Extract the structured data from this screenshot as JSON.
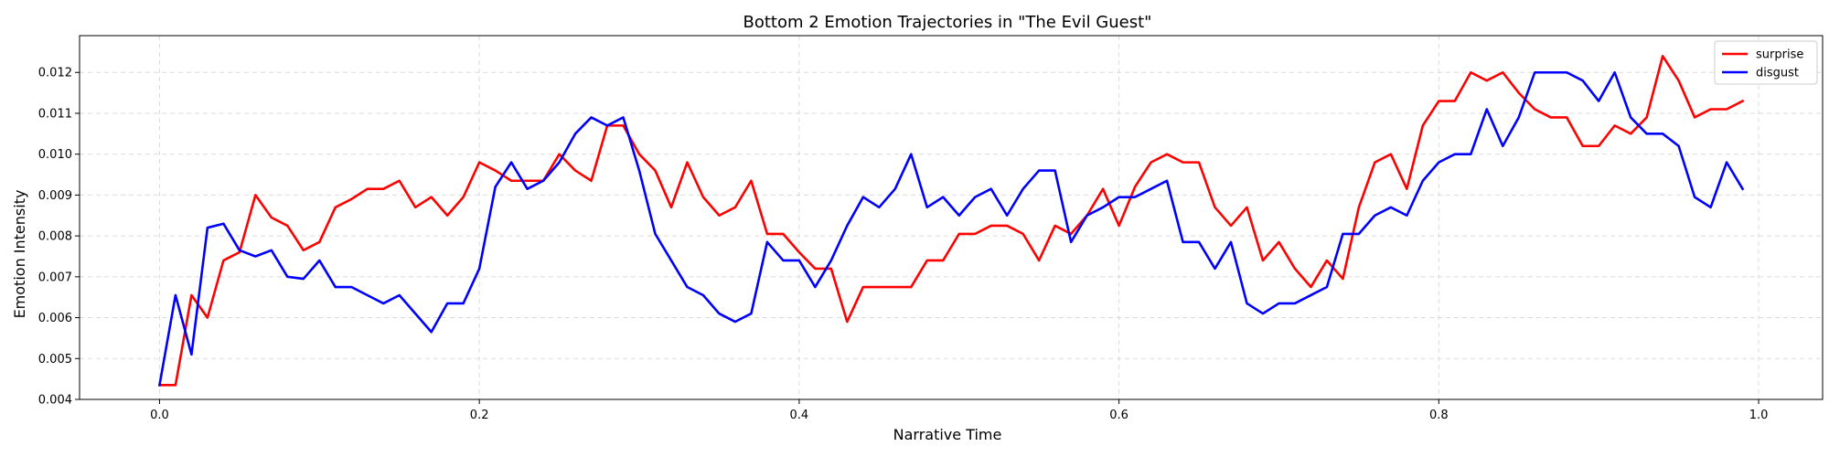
{
  "chart_data": {
    "type": "line",
    "title": "Bottom 2 Emotion Trajectories in \"The Evil Guest\"",
    "xlabel": "Narrative Time",
    "ylabel": "Emotion Intensity",
    "xlim": [
      -0.05,
      1.04
    ],
    "ylim": [
      0.004,
      0.0129
    ],
    "xticks": [
      0.0,
      0.2,
      0.4,
      0.6,
      0.8,
      1.0
    ],
    "xtick_labels": [
      "0.0",
      "0.2",
      "0.4",
      "0.6",
      "0.8",
      "1.0"
    ],
    "yticks": [
      0.004,
      0.005,
      0.006,
      0.007,
      0.008,
      0.009,
      0.01,
      0.011,
      0.012
    ],
    "ytick_labels": [
      "0.004",
      "0.005",
      "0.006",
      "0.007",
      "0.008",
      "0.009",
      "0.010",
      "0.011",
      "0.012"
    ],
    "grid": true,
    "legend_position": "top-right",
    "x": [
      0.0,
      0.01,
      0.02,
      0.03,
      0.04,
      0.05,
      0.06,
      0.07,
      0.08,
      0.09,
      0.1,
      0.11,
      0.12,
      0.13,
      0.14,
      0.15,
      0.16,
      0.17,
      0.18,
      0.19,
      0.2,
      0.21,
      0.22,
      0.23,
      0.24,
      0.25,
      0.26,
      0.27,
      0.28,
      0.29,
      0.3,
      0.31,
      0.32,
      0.33,
      0.34,
      0.35,
      0.36,
      0.37,
      0.38,
      0.39,
      0.4,
      0.41,
      0.42,
      0.43,
      0.44,
      0.45,
      0.46,
      0.47,
      0.48,
      0.49,
      0.5,
      0.51,
      0.52,
      0.53,
      0.54,
      0.55,
      0.56,
      0.57,
      0.58,
      0.59,
      0.6,
      0.61,
      0.62,
      0.63,
      0.64,
      0.65,
      0.66,
      0.67,
      0.68,
      0.69,
      0.7,
      0.71,
      0.72,
      0.73,
      0.74,
      0.75,
      0.76,
      0.77,
      0.78,
      0.79,
      0.8,
      0.81,
      0.82,
      0.83,
      0.84,
      0.85,
      0.86,
      0.87,
      0.88,
      0.89,
      0.9,
      0.91,
      0.92,
      0.93,
      0.94,
      0.95,
      0.96,
      0.97,
      0.98,
      0.99
    ],
    "series": [
      {
        "name": "surprise",
        "color": "#ff0000",
        "values": [
          0.00435,
          0.00435,
          0.00655,
          0.006,
          0.0074,
          0.0076,
          0.009,
          0.00845,
          0.00825,
          0.00765,
          0.00785,
          0.0087,
          0.0089,
          0.00915,
          0.00915,
          0.00935,
          0.0087,
          0.00895,
          0.0085,
          0.00895,
          0.0098,
          0.0096,
          0.00935,
          0.00935,
          0.00935,
          0.01,
          0.0096,
          0.00935,
          0.0107,
          0.0107,
          0.01,
          0.0096,
          0.0087,
          0.0098,
          0.00895,
          0.0085,
          0.0087,
          0.00935,
          0.00805,
          0.00805,
          0.0076,
          0.0072,
          0.0072,
          0.0059,
          0.00675,
          0.00675,
          0.00675,
          0.00675,
          0.0074,
          0.0074,
          0.00805,
          0.00805,
          0.00825,
          0.00825,
          0.00805,
          0.0074,
          0.00825,
          0.00805,
          0.0085,
          0.00915,
          0.00825,
          0.0092,
          0.0098,
          0.01,
          0.0098,
          0.0098,
          0.0087,
          0.00825,
          0.0087,
          0.0074,
          0.00785,
          0.0072,
          0.00675,
          0.0074,
          0.00695,
          0.0087,
          0.0098,
          0.01,
          0.00915,
          0.0107,
          0.0113,
          0.0113,
          0.012,
          0.0118,
          0.012,
          0.0115,
          0.0111,
          0.0109,
          0.0109,
          0.0102,
          0.0102,
          0.0107,
          0.0105,
          0.0109,
          0.0124,
          0.0118,
          0.0109,
          0.0111,
          0.0111,
          0.0113
        ]
      },
      {
        "name": "disgust",
        "color": "#0000ff",
        "values": [
          0.00435,
          0.00655,
          0.0051,
          0.0082,
          0.0083,
          0.00765,
          0.0075,
          0.00765,
          0.007,
          0.00695,
          0.0074,
          0.00675,
          0.00675,
          0.00655,
          0.00635,
          0.00655,
          0.0061,
          0.00565,
          0.00635,
          0.00635,
          0.0072,
          0.0092,
          0.0098,
          0.00915,
          0.00935,
          0.0098,
          0.0105,
          0.0109,
          0.0107,
          0.0109,
          0.0096,
          0.00805,
          0.0074,
          0.00675,
          0.00655,
          0.0061,
          0.0059,
          0.0061,
          0.00785,
          0.0074,
          0.0074,
          0.00675,
          0.0074,
          0.00825,
          0.00895,
          0.0087,
          0.00915,
          0.01,
          0.0087,
          0.00895,
          0.0085,
          0.00895,
          0.00915,
          0.0085,
          0.00915,
          0.0096,
          0.0096,
          0.00785,
          0.0085,
          0.0087,
          0.00895,
          0.00895,
          0.00915,
          0.00935,
          0.00785,
          0.00785,
          0.0072,
          0.00785,
          0.00635,
          0.0061,
          0.00635,
          0.00635,
          0.00655,
          0.00675,
          0.00805,
          0.00805,
          0.0085,
          0.0087,
          0.0085,
          0.00935,
          0.0098,
          0.01,
          0.01,
          0.0111,
          0.0102,
          0.0109,
          0.012,
          0.012,
          0.012,
          0.0118,
          0.0113,
          0.012,
          0.0109,
          0.0105,
          0.0105,
          0.0102,
          0.00895,
          0.0087,
          0.0098,
          0.00915
        ]
      }
    ]
  }
}
